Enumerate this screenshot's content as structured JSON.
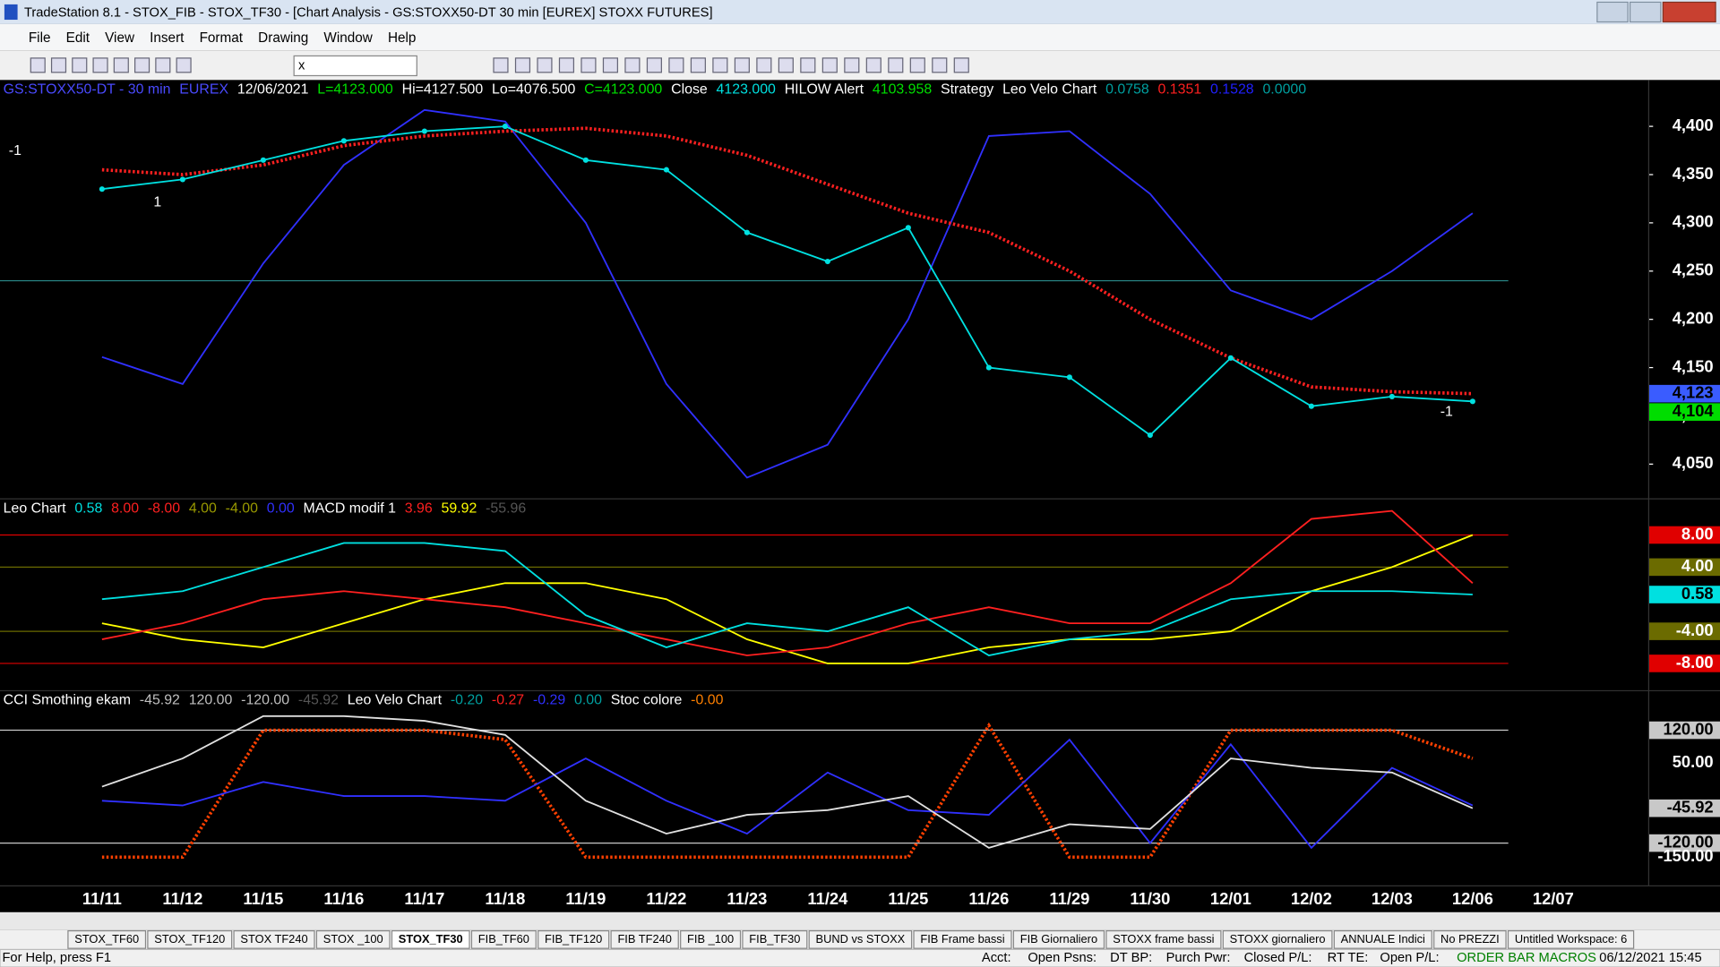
{
  "window": {
    "title": "TradeStation 8.1 - STOX_FIB - STOX_TF30 - [Chart Analysis - GS:STOXX50-DT  30 min  [EUREX] STOXX FUTURES]"
  },
  "menu": [
    "File",
    "Edit",
    "View",
    "Insert",
    "Format",
    "Drawing",
    "Window",
    "Help"
  ],
  "toolbar": {
    "symbol_box": "x"
  },
  "chart_data": [
    {
      "type": "line",
      "header": [
        {
          "text": "GS:STOXX50-DT - 30 min",
          "color": "#4a4aff"
        },
        {
          "text": "EUREX",
          "color": "#4a4aff"
        },
        {
          "text": "12/06/2021",
          "color": "#ffffff"
        },
        {
          "text": "L=4123.000",
          "color": "#00e000"
        },
        {
          "text": "Hi=4127.500",
          "color": "#ffffff"
        },
        {
          "text": "Lo=4076.500",
          "color": "#ffffff"
        },
        {
          "text": "C=4123.000",
          "color": "#00e000"
        },
        {
          "text": "Close",
          "color": "#ffffff"
        },
        {
          "text": "4123.000",
          "color": "#00e0e0"
        },
        {
          "text": "HILOW Alert",
          "color": "#ffffff"
        },
        {
          "text": "4103.958",
          "color": "#00e000"
        },
        {
          "text": "Strategy",
          "color": "#ffffff"
        },
        {
          "text": "Leo Velo Chart",
          "color": "#ffffff"
        },
        {
          "text": "0.0758",
          "color": "#00a0a0"
        },
        {
          "text": "0.1351",
          "color": "#ff2020"
        },
        {
          "text": "0.1528",
          "color": "#2020ff"
        },
        {
          "text": "0.0000",
          "color": "#00a0a0"
        }
      ],
      "categories": [
        "11/11",
        "11/12",
        "11/15",
        "11/16",
        "11/17",
        "11/18",
        "11/19",
        "11/22",
        "11/23",
        "11/24",
        "11/25",
        "11/26",
        "11/29",
        "11/30",
        "12/01",
        "12/02",
        "12/03",
        "12/06",
        "12/07"
      ],
      "series": [
        {
          "color": "#3030ff",
          "values": [
            4161,
            4133,
            4258,
            4360,
            4417,
            4405,
            4300,
            4133,
            4036,
            4070,
            4200,
            4390,
            4395,
            4330,
            4230,
            4200,
            4250,
            4310,
            null
          ]
        },
        {
          "color": "#ff2020",
          "dotted": true,
          "values": [
            4355,
            4350,
            4360,
            4380,
            4390,
            4395,
            4398,
            4390,
            4370,
            4340,
            4310,
            4290,
            4250,
            4200,
            4160,
            4130,
            4125,
            4123,
            null
          ]
        },
        {
          "color": "#00e0e0",
          "markers": true,
          "values": [
            4335,
            4345,
            4365,
            4385,
            4395,
            4400,
            4365,
            4355,
            4290,
            4260,
            4295,
            4150,
            4140,
            4080,
            4160,
            4110,
            4120,
            4115,
            null
          ]
        }
      ],
      "hline": {
        "value": 4240,
        "color": "#2a8a8a"
      },
      "annotations": [
        "-1",
        "1",
        "-1"
      ],
      "ylim": [
        4014,
        4448
      ],
      "yticks": [
        {
          "value": 4050,
          "label": "4,050"
        },
        {
          "value": 4100,
          "label": "4,100"
        },
        {
          "value": 4150,
          "label": "4,150"
        },
        {
          "value": 4200,
          "label": "4,200"
        },
        {
          "value": 4250,
          "label": "4,250"
        },
        {
          "value": 4300,
          "label": "4,300"
        },
        {
          "value": 4350,
          "label": "4,350"
        },
        {
          "value": 4400,
          "label": "4,400"
        }
      ],
      "markers": [
        {
          "value": 4123,
          "label": "4,123",
          "color": "#3a5cff"
        },
        {
          "value": 4104,
          "label": "4,104",
          "color": "#00dd00"
        }
      ]
    },
    {
      "type": "line",
      "header": [
        {
          "text": "Leo Chart",
          "color": "#ffffff"
        },
        {
          "text": "0.58",
          "color": "#00e0e0"
        },
        {
          "text": "8.00",
          "color": "#ff2020"
        },
        {
          "text": "-8.00",
          "color": "#ff2020"
        },
        {
          "text": "4.00",
          "color": "#9a9a00"
        },
        {
          "text": "-4.00",
          "color": "#9a9a00"
        },
        {
          "text": "0.00",
          "color": "#3030ff"
        },
        {
          "text": "MACD modif 1",
          "color": "#ffffff"
        },
        {
          "text": "3.96",
          "color": "#ff2020"
        },
        {
          "text": "59.92",
          "color": "#ffff00"
        },
        {
          "text": "-55.96",
          "color": "#555555"
        }
      ],
      "series": [
        {
          "color": "#ffff00",
          "values": [
            -3,
            -5,
            -6,
            -3,
            0,
            2,
            2,
            0,
            -5,
            -8,
            -8,
            -6,
            -5,
            -5,
            -4,
            1,
            4,
            8,
            null
          ]
        },
        {
          "color": "#ff2020",
          "values": [
            -5,
            -3,
            0,
            1,
            0,
            -1,
            -3,
            -5,
            -7,
            -6,
            -3,
            -1,
            -3,
            -3,
            2,
            10,
            11,
            2,
            null
          ]
        },
        {
          "color": "#00e0e0",
          "values": [
            0,
            1,
            4,
            7,
            7,
            6,
            -2,
            -6,
            -3,
            -4,
            -1,
            -7,
            -5,
            -4,
            0,
            1,
            1,
            0.58,
            null
          ]
        }
      ],
      "ylim": [
        -11.4,
        12.5
      ],
      "yticks": [
        {
          "value": 8,
          "label": "8.00"
        },
        {
          "value": 4,
          "label": "4.00"
        },
        {
          "value": -4,
          "label": "-4.00"
        },
        {
          "value": -8,
          "label": "-8.00"
        }
      ],
      "tick_colors": [
        "#e00000",
        "#6b6b00",
        "#6b6b00",
        "#e00000"
      ],
      "markers": [
        {
          "value": 0.58,
          "label": "0.58",
          "color": "#00e0e0"
        }
      ]
    },
    {
      "type": "line",
      "header": [
        {
          "text": "CCI Smothing ekam",
          "color": "#ffffff"
        },
        {
          "text": "-45.92",
          "color": "#c0c0c0"
        },
        {
          "text": "120.00",
          "color": "#c0c0c0"
        },
        {
          "text": "-120.00",
          "color": "#c0c0c0"
        },
        {
          "text": "-45.92",
          "color": "#555555"
        },
        {
          "text": "Leo Velo Chart",
          "color": "#ffffff"
        },
        {
          "text": "-0.20",
          "color": "#00a0a0"
        },
        {
          "text": "-0.27",
          "color": "#ff2020"
        },
        {
          "text": "-0.29",
          "color": "#3030ff"
        },
        {
          "text": "0.00",
          "color": "#00a0a0"
        },
        {
          "text": "Stoc colore",
          "color": "#ffffff"
        },
        {
          "text": "-0.00",
          "color": "#ff8000"
        }
      ],
      "series": [
        {
          "color": "#ff4000",
          "dotted": true,
          "values": [
            -150,
            -150,
            120,
            120,
            120,
            100,
            -150,
            -150,
            -150,
            -150,
            -150,
            130,
            -150,
            -150,
            120,
            120,
            120,
            60,
            null
          ]
        },
        {
          "color": "#3030ff",
          "values": [
            -30,
            -40,
            10,
            -20,
            -20,
            -30,
            60,
            -30,
            -100,
            30,
            -50,
            -60,
            100,
            -120,
            90,
            -130,
            40,
            -40,
            null
          ]
        },
        {
          "color": "#e0e0e0",
          "values": [
            0,
            60,
            150,
            150,
            140,
            110,
            -30,
            -100,
            -60,
            -50,
            -20,
            -130,
            -80,
            -90,
            60,
            40,
            30,
            -45.92,
            null
          ]
        }
      ],
      "ylim": [
        -211,
        204
      ],
      "yticks": [
        {
          "value": 120,
          "label": "120.00"
        },
        {
          "value": 50,
          "label": "50.00"
        },
        {
          "value": -120,
          "label": "-120.00"
        },
        {
          "value": -150,
          "label": "-150.00"
        }
      ],
      "tick_colors": [
        "#c8c8c8",
        "#000000",
        "#c8c8c8",
        "#000000"
      ],
      "markers": [
        {
          "value": -45.92,
          "label": "-45.92",
          "color": "#c8c8c8"
        }
      ]
    }
  ],
  "tabs": [
    "STOX_TF60",
    "STOX_TF120",
    "STOX TF240",
    "STOX _100",
    "STOX_TF30",
    "FIB_TF60",
    "FIB_TF120",
    "FIB TF240",
    "FIB _100",
    "FIB_TF30",
    "BUND vs STOXX",
    "FIB Frame bassi",
    "FIB Giornaliero",
    "STOXX frame bassi",
    "STOXX giornaliero",
    "ANNUALE Indici",
    "No PREZZI",
    "Untitled Workspace:  6"
  ],
  "active_tab": 4,
  "status_bar": [
    "For Help, press F1",
    "Acct:",
    "Open Psns:",
    "DT BP:",
    "Purch Pwr:",
    "Closed P/L:",
    "RT TE:",
    "Open P/L:",
    "ORDER BAR MACROS",
    "06/12/2021 15:45"
  ]
}
